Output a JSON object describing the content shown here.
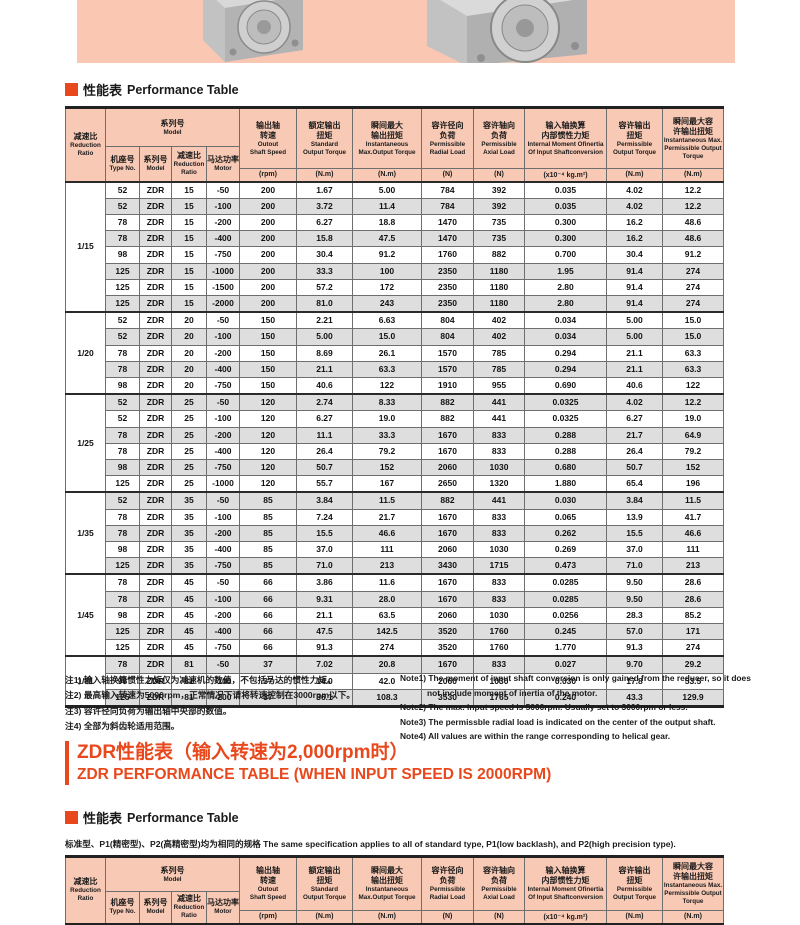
{
  "colors": {
    "accent": "#e8481c",
    "header_bg": "#f8c9b4",
    "band_bg": "#f9c7b2",
    "row_alt": "#dedede"
  },
  "page": {
    "title_bar1": {
      "cn": "性能表",
      "en": "Performance Table"
    },
    "title_bar2": {
      "cn": "性能表",
      "en": "Performance Table"
    },
    "section_heading": {
      "line1": "ZDR性能表（输入转速为2,000rpm时）",
      "line2": "ZDR PERFORMANCE TABLE (WHEN INPUT SPEED IS 2000RPM)"
    },
    "spec_note": {
      "cn": "标准型、P1(精密型)、P2(高精密型)均为相同的规格",
      "en": "The same specification applies to all of standard type, P1(low backlash), and P2(high precision type)."
    }
  },
  "notes_cn": [
    "注1) 输入轴换算惯性力矩仅为减速机的数值，不包括马达的惯性力矩。",
    "注2) 最高输入转速为5000rpm，正常情况下请将转速控制在3000rpm以下。",
    "注3) 容许径向负荷为输出轴中央部的数值。",
    "注4) 全部为斜齿轮适用范围。"
  ],
  "notes_en": [
    "Note1) The moment of input shaft conversion is only gained from the reducer, so it does not include moment of inertia of the motor.",
    "Note2) The max. input speed is 5000rpm. Usually set to 3000rpm or less.",
    "Note3) The permissble radial load is indicated on the center of the output shaft.",
    "Note4) All values are within the range corresponding to helical gear."
  ],
  "performance_table": {
    "header": {
      "ratio": [
        "减速比",
        "Reduction",
        "Ratio"
      ],
      "model_group": [
        "系列号",
        "Model"
      ],
      "model_subs": [
        [
          "机座号",
          "Type No."
        ],
        [
          "系列号",
          "Model"
        ],
        [
          "减速比",
          "Reduction",
          "Ratio"
        ],
        [
          "马达功率",
          "Motor"
        ]
      ],
      "columns": [
        {
          "lines": [
            "输出轴",
            "转速",
            "Outout",
            "Shaft Speed"
          ],
          "unit": "(rpm)"
        },
        {
          "lines": [
            "额定输出",
            "扭矩",
            "Standard",
            "Output Torque"
          ],
          "unit": "(N.m)"
        },
        {
          "lines": [
            "瞬间最大",
            "输出扭矩",
            "Instantaneous",
            "Max.Output Torque"
          ],
          "unit": "(N.m)"
        },
        {
          "lines": [
            "容许径向",
            "负荷",
            "Permissible",
            "Radial Load"
          ],
          "unit": "(N)"
        },
        {
          "lines": [
            "容许轴向",
            "负荷",
            "Permissible",
            "Axial Load"
          ],
          "unit": "(N)"
        },
        {
          "lines": [
            "输入轴换算",
            "内部惯性力矩",
            "Internal Moment Ofinertia",
            "Of Input Shaftconversion"
          ],
          "unit": "(x10⁻⁴ kg.m²)"
        },
        {
          "lines": [
            "容许输出",
            "扭矩",
            "Permissible",
            "Output Torque"
          ],
          "unit": "(N.m)"
        },
        {
          "lines": [
            "瞬间最大容",
            "许输出扭矩",
            "Instantaneous Max.",
            "Permissible Output Torque"
          ],
          "unit": "(N.m)"
        }
      ]
    },
    "groups": [
      {
        "ratio": "1/15",
        "rows": [
          [
            "52",
            "ZDR",
            "15",
            "-50",
            "200",
            "1.67",
            "5.00",
            "784",
            "392",
            "0.035",
            "4.02",
            "12.2"
          ],
          [
            "52",
            "ZDR",
            "15",
            "-100",
            "200",
            "3.72",
            "11.4",
            "784",
            "392",
            "0.035",
            "4.02",
            "12.2"
          ],
          [
            "78",
            "ZDR",
            "15",
            "-200",
            "200",
            "6.27",
            "18.8",
            "1470",
            "735",
            "0.300",
            "16.2",
            "48.6"
          ],
          [
            "78",
            "ZDR",
            "15",
            "-400",
            "200",
            "15.8",
            "47.5",
            "1470",
            "735",
            "0.300",
            "16.2",
            "48.6"
          ],
          [
            "98",
            "ZDR",
            "15",
            "-750",
            "200",
            "30.4",
            "91.2",
            "1760",
            "882",
            "0.700",
            "30.4",
            "91.2"
          ],
          [
            "125",
            "ZDR",
            "15",
            "-1000",
            "200",
            "33.3",
            "100",
            "2350",
            "1180",
            "1.95",
            "91.4",
            "274"
          ],
          [
            "125",
            "ZDR",
            "15",
            "-1500",
            "200",
            "57.2",
            "172",
            "2350",
            "1180",
            "2.80",
            "91.4",
            "274"
          ],
          [
            "125",
            "ZDR",
            "15",
            "-2000",
            "200",
            "81.0",
            "243",
            "2350",
            "1180",
            "2.80",
            "91.4",
            "274"
          ]
        ]
      },
      {
        "ratio": "1/20",
        "rows": [
          [
            "52",
            "ZDR",
            "20",
            "-50",
            "150",
            "2.21",
            "6.63",
            "804",
            "402",
            "0.034",
            "5.00",
            "15.0"
          ],
          [
            "52",
            "ZDR",
            "20",
            "-100",
            "150",
            "5.00",
            "15.0",
            "804",
            "402",
            "0.034",
            "5.00",
            "15.0"
          ],
          [
            "78",
            "ZDR",
            "20",
            "-200",
            "150",
            "8.69",
            "26.1",
            "1570",
            "785",
            "0.294",
            "21.1",
            "63.3"
          ],
          [
            "78",
            "ZDR",
            "20",
            "-400",
            "150",
            "21.1",
            "63.3",
            "1570",
            "785",
            "0.294",
            "21.1",
            "63.3"
          ],
          [
            "98",
            "ZDR",
            "20",
            "-750",
            "150",
            "40.6",
            "122",
            "1910",
            "955",
            "0.690",
            "40.6",
            "122"
          ]
        ]
      },
      {
        "ratio": "1/25",
        "rows": [
          [
            "52",
            "ZDR",
            "25",
            "-50",
            "120",
            "2.74",
            "8.33",
            "882",
            "441",
            "0.0325",
            "4.02",
            "12.2"
          ],
          [
            "52",
            "ZDR",
            "25",
            "-100",
            "120",
            "6.27",
            "19.0",
            "882",
            "441",
            "0.0325",
            "6.27",
            "19.0"
          ],
          [
            "78",
            "ZDR",
            "25",
            "-200",
            "120",
            "11.1",
            "33.3",
            "1670",
            "833",
            "0.288",
            "21.7",
            "64.9"
          ],
          [
            "78",
            "ZDR",
            "25",
            "-400",
            "120",
            "26.4",
            "79.2",
            "1670",
            "833",
            "0.288",
            "26.4",
            "79.2"
          ],
          [
            "98",
            "ZDR",
            "25",
            "-750",
            "120",
            "50.7",
            "152",
            "2060",
            "1030",
            "0.680",
            "50.7",
            "152"
          ],
          [
            "125",
            "ZDR",
            "25",
            "-1000",
            "120",
            "55.7",
            "167",
            "2650",
            "1320",
            "1.880",
            "65.4",
            "196"
          ]
        ]
      },
      {
        "ratio": "1/35",
        "rows": [
          [
            "52",
            "ZDR",
            "35",
            "-50",
            "85",
            "3.84",
            "11.5",
            "882",
            "441",
            "0.030",
            "3.84",
            "11.5"
          ],
          [
            "78",
            "ZDR",
            "35",
            "-100",
            "85",
            "7.24",
            "21.7",
            "1670",
            "833",
            "0.065",
            "13.9",
            "41.7"
          ],
          [
            "78",
            "ZDR",
            "35",
            "-200",
            "85",
            "15.5",
            "46.6",
            "1670",
            "833",
            "0.262",
            "15.5",
            "46.6"
          ],
          [
            "98",
            "ZDR",
            "35",
            "-400",
            "85",
            "37.0",
            "111",
            "2060",
            "1030",
            "0.269",
            "37.0",
            "111"
          ],
          [
            "125",
            "ZDR",
            "35",
            "-750",
            "85",
            "71.0",
            "213",
            "3430",
            "1715",
            "0.473",
            "71.0",
            "213"
          ]
        ]
      },
      {
        "ratio": "1/45",
        "rows": [
          [
            "78",
            "ZDR",
            "45",
            "-50",
            "66",
            "3.86",
            "11.6",
            "1670",
            "833",
            "0.0285",
            "9.50",
            "28.6"
          ],
          [
            "78",
            "ZDR",
            "45",
            "-100",
            "66",
            "9.31",
            "28.0",
            "1670",
            "833",
            "0.0285",
            "9.50",
            "28.6"
          ],
          [
            "98",
            "ZDR",
            "45",
            "-200",
            "66",
            "21.1",
            "63.5",
            "2060",
            "1030",
            "0.0256",
            "28.3",
            "85.2"
          ],
          [
            "125",
            "ZDR",
            "45",
            "-400",
            "66",
            "47.5",
            "142.5",
            "3520",
            "1760",
            "0.245",
            "57.0",
            "171"
          ],
          [
            "125",
            "ZDR",
            "45",
            "-750",
            "66",
            "91.3",
            "274",
            "3520",
            "1760",
            "1.770",
            "91.3",
            "274"
          ]
        ]
      },
      {
        "ratio": "1/81",
        "rows": [
          [
            "78",
            "ZDR",
            "81",
            "-50",
            "37",
            "7.02",
            "20.8",
            "1670",
            "833",
            "0.027",
            "9.70",
            "29.2"
          ],
          [
            "98",
            "ZDR",
            "81",
            "-100",
            "37",
            "14.0",
            "42.0",
            "2060",
            "1030",
            "0.030",
            "17.8",
            "53.5"
          ],
          [
            "125",
            "ZDR",
            "81",
            "-200",
            "37",
            "36.1",
            "108.3",
            "3530",
            "1765",
            "0.240",
            "43.3",
            "129.9"
          ]
        ]
      }
    ]
  }
}
